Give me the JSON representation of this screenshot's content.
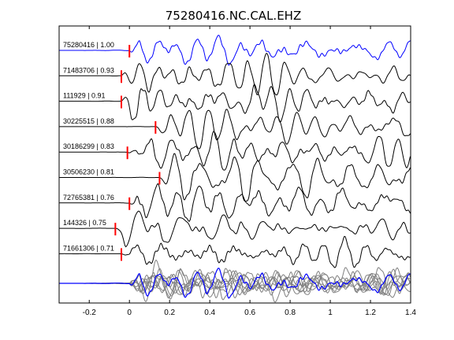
{
  "chart_data": {
    "type": "line",
    "title": "75280416.NC.CAL.EHZ",
    "xlabel": "",
    "ylabel": "",
    "xlim": [
      -0.35,
      1.4
    ],
    "xticks": [
      -0.2,
      0,
      0.2,
      0.4,
      0.6,
      0.8,
      1,
      1.2,
      1.4
    ],
    "xtick_labels": [
      "-0.2",
      "0",
      "0.2",
      "0.4",
      "0.6",
      "0.8",
      "1",
      "1.2",
      "1.4"
    ],
    "grid": false,
    "series_colors": {
      "reference": "#0000ff",
      "match": "#000000",
      "pick": "#ff0000",
      "stack_other": "#808080"
    },
    "traces": [
      {
        "label": "75280416 | 1.00",
        "id": "75280416",
        "cc": 1.0,
        "pick_time": 0.0,
        "reference": true
      },
      {
        "label": "71483706 | 0.93",
        "id": "71483706",
        "cc": 0.93,
        "pick_time": -0.04,
        "reference": false
      },
      {
        "label": "111929 | 0.91",
        "id": "111929",
        "cc": 0.91,
        "pick_time": -0.04,
        "reference": false
      },
      {
        "label": "30225515 | 0.88",
        "id": "30225515",
        "cc": 0.88,
        "pick_time": 0.13,
        "reference": false
      },
      {
        "label": "30186299 | 0.83",
        "id": "30186299",
        "cc": 0.83,
        "pick_time": -0.01,
        "reference": false
      },
      {
        "label": "30506230 | 0.81",
        "id": "30506230",
        "cc": 0.81,
        "pick_time": 0.15,
        "reference": false
      },
      {
        "label": "72765381 | 0.76",
        "id": "72765381",
        "cc": 0.76,
        "pick_time": 0.0,
        "reference": false
      },
      {
        "label": "144326 | 0.75",
        "id": "144326",
        "cc": 0.75,
        "pick_time": -0.07,
        "reference": false
      },
      {
        "label": "71661306 | 0.71",
        "id": "71661306",
        "cc": 0.71,
        "pick_time": -0.04,
        "reference": false
      }
    ],
    "stack": {
      "label": "",
      "description_visible": false
    }
  }
}
